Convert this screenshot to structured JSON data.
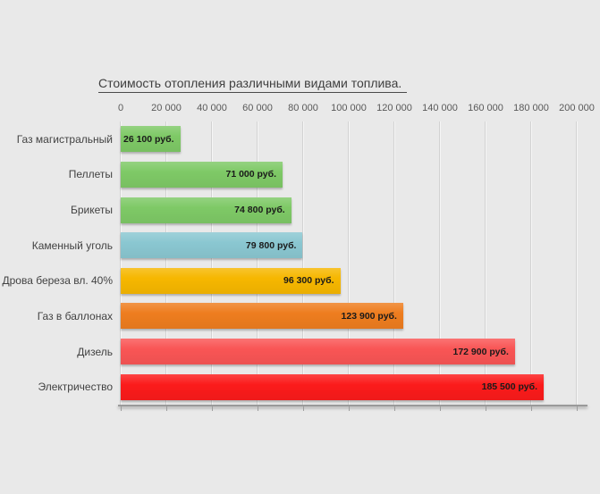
{
  "page": {
    "background_color": "#e9e9e9"
  },
  "chart_data": {
    "type": "bar",
    "orientation": "horizontal",
    "title": "Стоимость отопления различными видами топлива.",
    "categories": [
      "Газ магистральный",
      "Пеллеты",
      "Брикеты",
      "Каменный уголь",
      "Дрова береза вл. 40%",
      "Газ в баллонах",
      "Дизель",
      "Электричество"
    ],
    "values": [
      26100,
      71000,
      74800,
      79800,
      96300,
      123900,
      172900,
      185500
    ],
    "value_labels": [
      "26 100 руб.",
      "71 000 руб.",
      "74 800 руб.",
      "79 800 руб.",
      "96 300 руб.",
      "123 900 руб.",
      "172 900 руб.",
      "185 500 руб."
    ],
    "bar_colors": [
      "#7ec966",
      "#7ec966",
      "#7ec966",
      "#8ac7d1",
      "#f6b700",
      "#ee7d1f",
      "#f95555",
      "#fb1b1b"
    ],
    "xlim": [
      0,
      200000
    ],
    "x_tick_interval": 20000,
    "x_tick_labels": [
      "0",
      "20 000",
      "40 000",
      "60 000",
      "80 000",
      "100 000",
      "120 000",
      "140 000",
      "160 000",
      "180 000",
      "200 000"
    ],
    "grid": true,
    "legend_position": "none",
    "xlabel": "",
    "ylabel": ""
  }
}
